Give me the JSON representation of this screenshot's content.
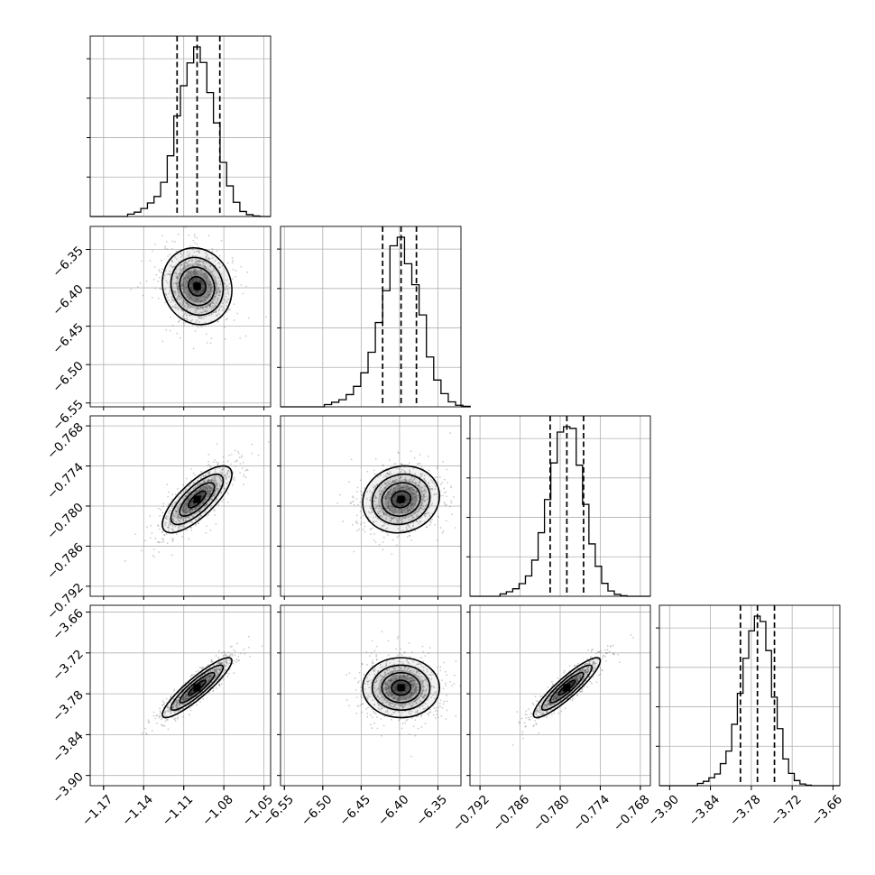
{
  "chart_data": {
    "type": "corner",
    "n_params": 4,
    "parameters": [
      {
        "range": [
          -1.18,
          -1.045
        ],
        "ticks": [
          -1.17,
          -1.14,
          -1.11,
          -1.08,
          -1.05
        ],
        "tick_labels": [
          "−1.17",
          "−1.14",
          "−1.11",
          "−1.08",
          "−1.05"
        ],
        "quantiles": [
          -1.115,
          -1.1,
          -1.083
        ],
        "mean": -1.1,
        "sd": 0.013
      },
      {
        "range": [
          -6.555,
          -6.32
        ],
        "ticks": [
          -6.55,
          -6.5,
          -6.45,
          -6.4,
          -6.35
        ],
        "tick_labels": [
          "−6.55",
          "−6.50",
          "−6.45",
          "−6.40",
          "−6.35"
        ],
        "quantiles": [
          -6.422,
          -6.398,
          -6.378
        ],
        "mean": -6.398,
        "sd": 0.025
      },
      {
        "range": [
          -0.7935,
          -0.7665
        ],
        "ticks": [
          -0.792,
          -0.786,
          -0.78,
          -0.774,
          -0.768
        ],
        "tick_labels": [
          "−0.792",
          "−0.786",
          "−0.780",
          "−0.774",
          "−0.768"
        ],
        "quantiles": [
          -0.7815,
          -0.779,
          -0.7765
        ],
        "mean": -0.779,
        "sd": 0.0025
      },
      {
        "range": [
          -3.915,
          -3.65
        ],
        "ticks": [
          -3.9,
          -3.84,
          -3.78,
          -3.72,
          -3.66
        ],
        "tick_labels": [
          "−3.90",
          "−3.84",
          "−3.78",
          "−3.72",
          "−3.66"
        ],
        "quantiles": [
          -3.796,
          -3.771,
          -3.746
        ],
        "mean": -3.771,
        "sd": 0.022
      }
    ],
    "correlations": {
      "1_0": -0.1,
      "2_0": 0.75,
      "2_1": 0.1,
      "3_0": 0.9,
      "3_1": 0.0,
      "3_2": 0.9
    },
    "histogram_y_ticks": 4,
    "grid": true,
    "quantile_lines": "dashed"
  },
  "colors": {
    "axes": "#000000",
    "grid": "#b0b0b0",
    "scatter": "#6e6e6e",
    "density_dark": "#000000",
    "density_light": "#ffffff"
  }
}
